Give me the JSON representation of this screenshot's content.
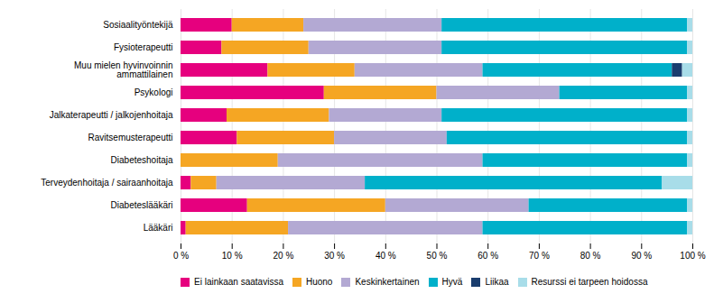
{
  "chart_data": {
    "type": "bar",
    "orientation": "horizontal",
    "stacked": true,
    "categories": [
      "Lääkäri",
      "Diabeteslääkäri",
      "Terveydenhoitaja / sairaanhoitaja",
      "Diabeteshoitaja",
      "Ravitsemusterapeutti",
      "Jalkaterapeutti / jalkojenhoitaja",
      "Psykologi",
      "Muu mielen hyvinvoinnin\nammattilainen",
      "Fysioterapeutti",
      "Sosiaalityöntekijä"
    ],
    "series": [
      {
        "name": "Ei lainkaan saatavissa",
        "color": "#e6007e",
        "values": [
          1,
          13,
          2,
          0,
          11,
          9,
          28,
          17,
          8,
          10
        ]
      },
      {
        "name": "Huono",
        "color": "#f5a623",
        "values": [
          20,
          27,
          5,
          19,
          19,
          20,
          22,
          17,
          17,
          14
        ]
      },
      {
        "name": "Keskinkertainen",
        "color": "#b3a9d3",
        "values": [
          38,
          28,
          29,
          40,
          22,
          22,
          24,
          25,
          26,
          27
        ]
      },
      {
        "name": "Hyvä",
        "color": "#00b0ca",
        "values": [
          40,
          31,
          58,
          40,
          47,
          48,
          25,
          37,
          48,
          48
        ]
      },
      {
        "name": "Liikaa",
        "color": "#1a3d6e",
        "values": [
          0,
          0,
          0,
          0,
          0,
          0,
          0,
          2,
          0,
          0
        ]
      },
      {
        "name": "Resurssi ei tarpeen hoidossa",
        "color": "#a8dde9",
        "values": [
          1,
          1,
          6,
          1,
          1,
          1,
          1,
          2,
          1,
          1
        ]
      }
    ],
    "xlim": [
      0,
      100
    ],
    "xticks": [
      {
        "value": 0,
        "label": "0 %"
      },
      {
        "value": 10,
        "label": "10 %"
      },
      {
        "value": 20,
        "label": "20 %"
      },
      {
        "value": 30,
        "label": "30 %"
      },
      {
        "value": 40,
        "label": "40 %"
      },
      {
        "value": 50,
        "label": "50 %"
      },
      {
        "value": 60,
        "label": "60 %"
      },
      {
        "value": 70,
        "label": "70 %"
      },
      {
        "value": 80,
        "label": "80 %"
      },
      {
        "value": 90,
        "label": "90 %"
      },
      {
        "value": 100,
        "label": "100 %"
      }
    ],
    "grid": true,
    "legend": "bottom"
  }
}
